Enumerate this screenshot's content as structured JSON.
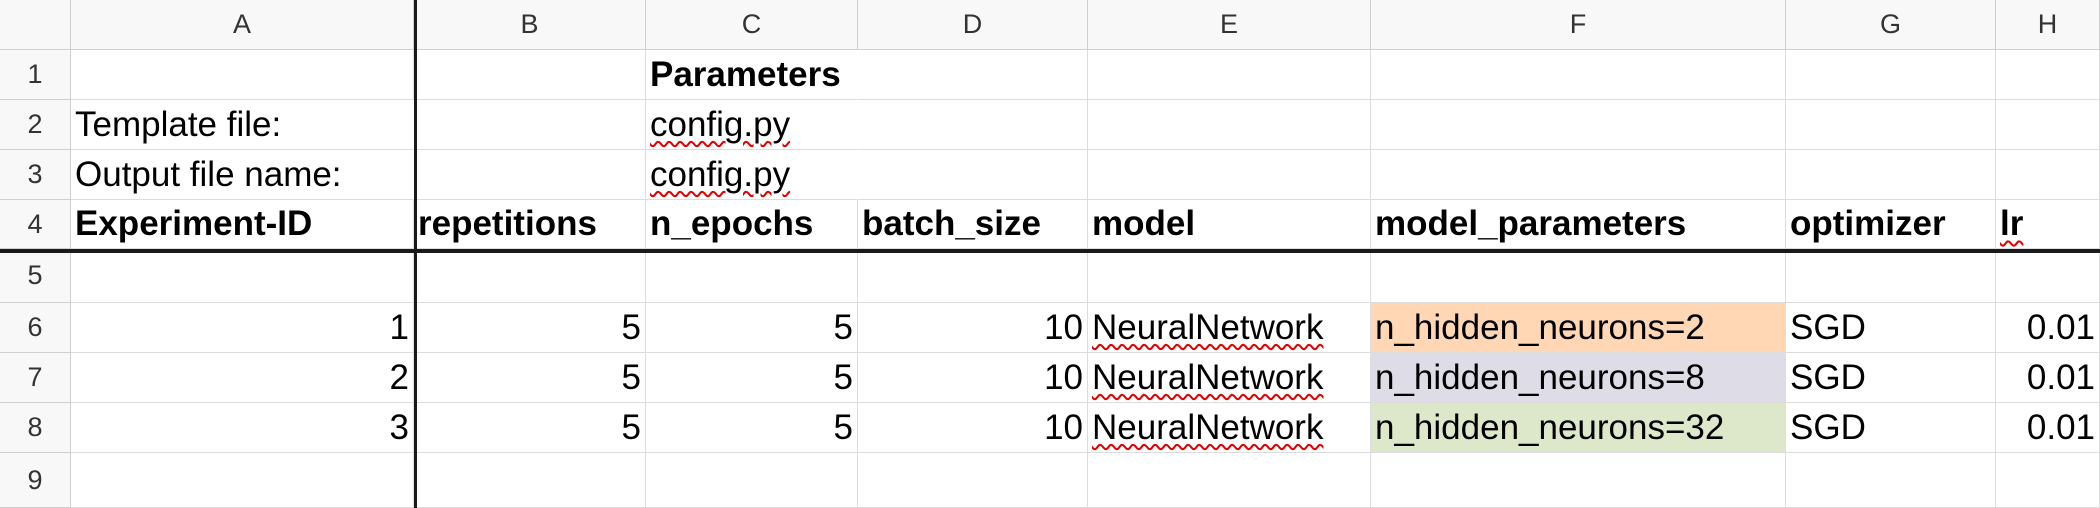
{
  "columns": [
    "A",
    "B",
    "C",
    "D",
    "E",
    "F",
    "G",
    "H"
  ],
  "rows": [
    "1",
    "2",
    "3",
    "4",
    "5",
    "6",
    "7",
    "8",
    "9"
  ],
  "cells": {
    "C1": "Parameters",
    "A2": "Template file:",
    "C2": "config.py",
    "A3": "Output file name:",
    "C3": "config.py",
    "A4": "Experiment-ID",
    "B4": "repetitions",
    "C4": "n_epochs",
    "D4": "batch_size",
    "E4": "model",
    "F4": "model_parameters",
    "G4": "optimizer",
    "H4": "lr",
    "A6": "1",
    "B6": "5",
    "C6": "5",
    "D6": "10",
    "E6": "NeuralNetwork",
    "F6": "n_hidden_neurons=2",
    "G6": "SGD",
    "H6": "0.01",
    "A7": "2",
    "B7": "5",
    "C7": "5",
    "D7": "10",
    "E7": "NeuralNetwork",
    "F7": "n_hidden_neurons=8",
    "G7": "SGD",
    "H7": "0.01",
    "A8": "3",
    "B8": "5",
    "C8": "5",
    "D8": "10",
    "E8": "NeuralNetwork",
    "F8": "n_hidden_neurons=32",
    "G8": "SGD",
    "H8": "0.01"
  },
  "colors": {
    "F6": "#ffd7b5",
    "F7": "#dedce6",
    "F8": "#dde8cb",
    "grid": "#dcdcdc",
    "header_bg": "#f8f8f8",
    "spellcheck": "#e00000"
  }
}
